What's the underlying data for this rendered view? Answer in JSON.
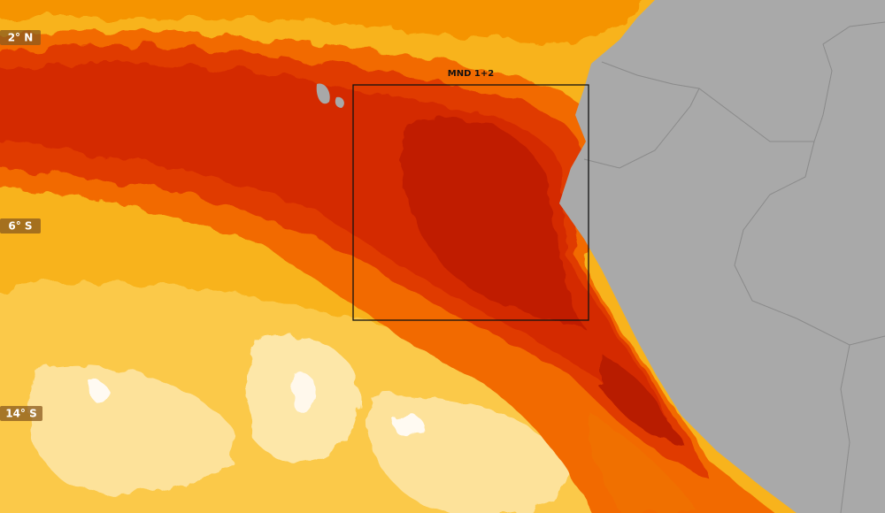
{
  "latitude_labels": [
    "2° N",
    "6° S",
    "14° S"
  ],
  "region_box": {
    "label": "MND 1+2"
  }
}
